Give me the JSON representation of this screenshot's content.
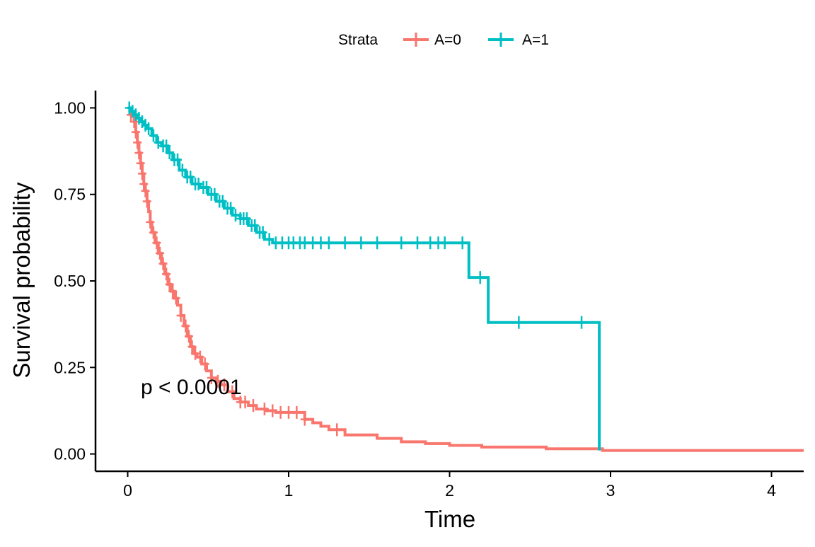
{
  "legend": {
    "title": "Strata",
    "entries": [
      "A=0",
      "A=1"
    ],
    "colors": [
      "#F8766D",
      "#00BFC4"
    ],
    "position": "top"
  },
  "annotation": "p < 0.0001",
  "chart_data": {
    "type": "line",
    "step": true,
    "xlabel": "Time",
    "ylabel": "Survival probability",
    "xlim": [
      -0.2,
      4.2
    ],
    "ylim": [
      -0.05,
      1.05
    ],
    "xticks": [
      0,
      1,
      2,
      3,
      4
    ],
    "xtick_labels": [
      "0",
      "1",
      "2",
      "3",
      "4"
    ],
    "yticks": [
      0,
      0.25,
      0.5,
      0.75,
      1
    ],
    "ytick_labels": [
      "0.00",
      "0.25",
      "0.50",
      "0.75",
      "1.00"
    ],
    "grid": false,
    "series": [
      {
        "name": "A=0",
        "color": "#F8766D",
        "x": [
          0,
          0.02,
          0.04,
          0.05,
          0.06,
          0.07,
          0.08,
          0.09,
          0.1,
          0.11,
          0.12,
          0.13,
          0.14,
          0.15,
          0.17,
          0.19,
          0.21,
          0.23,
          0.25,
          0.27,
          0.29,
          0.31,
          0.33,
          0.35,
          0.37,
          0.39,
          0.41,
          0.43,
          0.46,
          0.49,
          0.52,
          0.55,
          0.58,
          0.62,
          0.66,
          0.7,
          0.75,
          0.8,
          0.86,
          0.92,
          1.0,
          1.1,
          1.15,
          1.2,
          1.25,
          1.35,
          1.55,
          1.7,
          1.85,
          2.0,
          2.2,
          2.6,
          2.95,
          4.2
        ],
        "y": [
          1.0,
          0.98,
          0.96,
          0.93,
          0.9,
          0.87,
          0.84,
          0.81,
          0.78,
          0.76,
          0.73,
          0.7,
          0.67,
          0.64,
          0.61,
          0.58,
          0.55,
          0.52,
          0.49,
          0.47,
          0.45,
          0.43,
          0.4,
          0.37,
          0.34,
          0.31,
          0.29,
          0.28,
          0.26,
          0.24,
          0.22,
          0.21,
          0.2,
          0.18,
          0.16,
          0.15,
          0.14,
          0.13,
          0.125,
          0.12,
          0.12,
          0.1,
          0.09,
          0.08,
          0.07,
          0.055,
          0.045,
          0.035,
          0.03,
          0.025,
          0.02,
          0.015,
          0.01,
          0.01
        ],
        "censor_x": [
          0.02,
          0.04,
          0.05,
          0.06,
          0.07,
          0.08,
          0.09,
          0.1,
          0.11,
          0.12,
          0.14,
          0.16,
          0.18,
          0.2,
          0.22,
          0.24,
          0.26,
          0.28,
          0.3,
          0.33,
          0.36,
          0.38,
          0.4,
          0.42,
          0.45,
          0.48,
          0.52,
          0.56,
          0.6,
          0.65,
          0.7,
          0.73,
          0.78,
          0.85,
          0.9,
          0.95,
          1.0,
          1.05,
          1.1,
          1.3
        ]
      },
      {
        "name": "A=1",
        "color": "#00BFC4",
        "x": [
          0,
          0.02,
          0.04,
          0.06,
          0.08,
          0.1,
          0.12,
          0.15,
          0.18,
          0.21,
          0.25,
          0.28,
          0.32,
          0.36,
          0.4,
          0.45,
          0.5,
          0.55,
          0.6,
          0.65,
          0.7,
          0.75,
          0.8,
          0.85,
          0.9,
          2.12,
          2.24,
          2.93,
          2.93
        ],
        "y": [
          1.0,
          0.99,
          0.98,
          0.97,
          0.96,
          0.95,
          0.94,
          0.92,
          0.9,
          0.89,
          0.87,
          0.85,
          0.82,
          0.8,
          0.78,
          0.77,
          0.75,
          0.73,
          0.71,
          0.69,
          0.68,
          0.66,
          0.64,
          0.62,
          0.61,
          0.51,
          0.38,
          0.38,
          0.01
        ],
        "censor_x": [
          0.01,
          0.03,
          0.05,
          0.07,
          0.09,
          0.11,
          0.13,
          0.16,
          0.19,
          0.22,
          0.24,
          0.26,
          0.29,
          0.31,
          0.34,
          0.37,
          0.39,
          0.42,
          0.44,
          0.47,
          0.49,
          0.52,
          0.54,
          0.57,
          0.59,
          0.62,
          0.64,
          0.67,
          0.7,
          0.72,
          0.74,
          0.77,
          0.79,
          0.82,
          0.84,
          0.88,
          0.92,
          0.96,
          1.0,
          1.03,
          1.07,
          1.1,
          1.15,
          1.2,
          1.25,
          1.35,
          1.45,
          1.55,
          1.7,
          1.8,
          1.88,
          1.93,
          1.97,
          2.08,
          2.19,
          2.43,
          2.82
        ]
      }
    ]
  }
}
